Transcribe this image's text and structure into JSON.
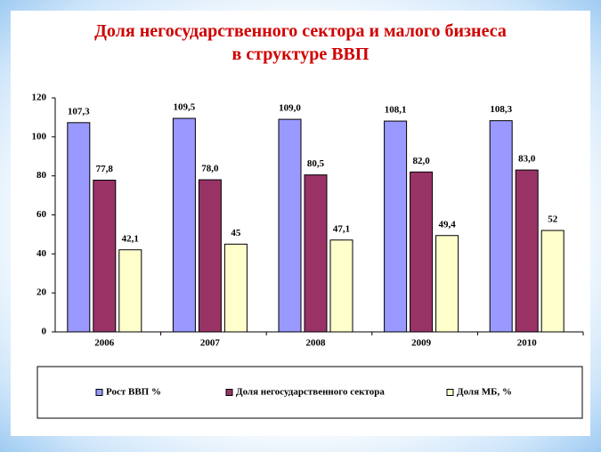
{
  "chart_data": {
    "type": "bar",
    "title": "Доля негосударственного сектора и малого бизнеса в структуре ВВП",
    "categories": [
      "2006",
      "2007",
      "2008",
      "2009",
      "2010"
    ],
    "series": [
      {
        "name": "Рост ВВП  %",
        "color": "#9999ff",
        "values": [
          107.3,
          109.5,
          109.0,
          108.1,
          108.3
        ],
        "value_labels": [
          "107,3",
          "109,5",
          "109,0",
          "108,1",
          "108,3"
        ]
      },
      {
        "name": "Доля негосударственного сектора",
        "color": "#993366",
        "values": [
          77.8,
          78.0,
          80.5,
          82.0,
          83.0
        ],
        "value_labels": [
          "77,8",
          "78,0",
          "80,5",
          "82,0",
          "83,0"
        ]
      },
      {
        "name": "Доля МБ, %",
        "color": "#ffffcc",
        "values": [
          42.1,
          45,
          47.1,
          49.4,
          52
        ],
        "value_labels": [
          "42,1",
          "45",
          "47,1",
          "49,4",
          "52"
        ]
      }
    ],
    "ylim": [
      0,
      120
    ],
    "yticks": [
      0,
      20,
      40,
      60,
      80,
      100,
      120
    ],
    "grid": false,
    "legend": "bottom"
  }
}
